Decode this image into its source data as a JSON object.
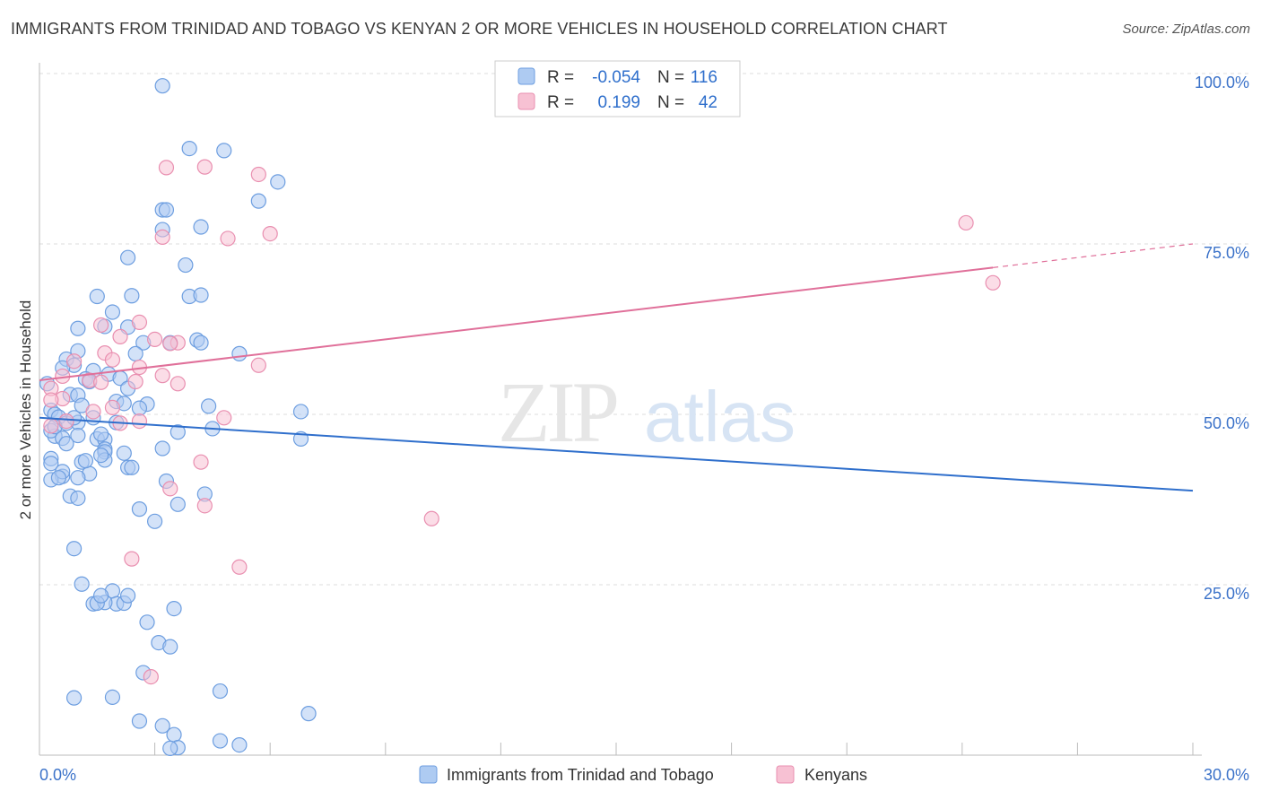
{
  "title": "IMMIGRANTS FROM TRINIDAD AND TOBAGO VS KENYAN 2 OR MORE VEHICLES IN HOUSEHOLD CORRELATION CHART",
  "source": "Source: ZipAtlas.com",
  "watermark": {
    "zip": "ZIP",
    "atlas": "atlas"
  },
  "colors": {
    "blue_fill": "#aecbf2",
    "blue_stroke": "#6d9ee0",
    "blue_line": "#2f6fcc",
    "pink_fill": "#f7c1d3",
    "pink_stroke": "#e98fb0",
    "pink_line": "#e0709a",
    "axis_text": "#3b72c9",
    "grid": "#dddddd"
  },
  "stats_legend": {
    "rows": [
      {
        "r_label": "R =",
        "r_value": "-0.054",
        "n_label": "N =",
        "n_value": "116"
      },
      {
        "r_label": "R =",
        "r_value": "0.199",
        "n_label": "N =",
        "n_value": "42"
      }
    ]
  },
  "chart_data": {
    "type": "scatter",
    "title": "IMMIGRANTS FROM TRINIDAD AND TOBAGO VS KENYAN 2 OR MORE VEHICLES IN HOUSEHOLD CORRELATION CHART",
    "xlabel": "",
    "ylabel": "2 or more Vehicles in Household",
    "xlim": [
      0,
      30
    ],
    "ylim": [
      0,
      100
    ],
    "x_tick_labels": [
      "0.0%",
      "30.0%"
    ],
    "y_tick_labels": [
      "25.0%",
      "50.0%",
      "75.0%",
      "100.0%"
    ],
    "y_ticks": [
      25,
      50,
      75,
      100
    ],
    "grid": true,
    "legend_position": "bottom-center",
    "series": [
      {
        "name": "Immigrants from Trinidad and Tobago",
        "color": "#aecbf2",
        "trend": {
          "x": [
            0,
            30
          ],
          "y": [
            49.5,
            38.8
          ]
        },
        "points": [
          [
            3.2,
            98.2
          ],
          [
            3.9,
            89.0
          ],
          [
            4.8,
            88.7
          ],
          [
            6.2,
            84.1
          ],
          [
            5.7,
            81.3
          ],
          [
            3.2,
            80.0
          ],
          [
            3.3,
            80.0
          ],
          [
            3.2,
            77.1
          ],
          [
            4.2,
            77.5
          ],
          [
            2.3,
            73.0
          ],
          [
            3.8,
            71.9
          ],
          [
            1.5,
            67.3
          ],
          [
            2.4,
            67.4
          ],
          [
            3.9,
            67.3
          ],
          [
            4.2,
            67.5
          ],
          [
            1.9,
            65.0
          ],
          [
            1.7,
            62.9
          ],
          [
            1.0,
            62.6
          ],
          [
            2.3,
            62.8
          ],
          [
            2.7,
            60.5
          ],
          [
            3.4,
            60.5
          ],
          [
            4.1,
            60.9
          ],
          [
            4.2,
            60.5
          ],
          [
            5.2,
            58.9
          ],
          [
            1.0,
            59.3
          ],
          [
            2.5,
            58.9
          ],
          [
            0.7,
            58.1
          ],
          [
            0.9,
            57.2
          ],
          [
            0.6,
            56.8
          ],
          [
            1.4,
            56.4
          ],
          [
            1.8,
            55.9
          ],
          [
            1.2,
            55.2
          ],
          [
            1.3,
            54.8
          ],
          [
            0.2,
            54.5
          ],
          [
            2.1,
            55.3
          ],
          [
            2.3,
            53.8
          ],
          [
            0.8,
            52.9
          ],
          [
            1.0,
            52.8
          ],
          [
            2.0,
            51.9
          ],
          [
            2.2,
            51.6
          ],
          [
            2.8,
            51.5
          ],
          [
            1.1,
            51.3
          ],
          [
            0.3,
            50.6
          ],
          [
            0.4,
            50.0
          ],
          [
            0.5,
            49.6
          ],
          [
            1.4,
            49.5
          ],
          [
            2.0,
            48.8
          ],
          [
            0.7,
            48.7
          ],
          [
            1.0,
            48.8
          ],
          [
            0.4,
            46.8
          ],
          [
            1.0,
            46.9
          ],
          [
            1.5,
            46.4
          ],
          [
            1.7,
            46.3
          ],
          [
            0.3,
            47.6
          ],
          [
            0.6,
            46.5
          ],
          [
            1.7,
            44.9
          ],
          [
            1.7,
            44.5
          ],
          [
            3.2,
            45.0
          ],
          [
            1.1,
            43.0
          ],
          [
            1.7,
            43.3
          ],
          [
            2.3,
            42.2
          ],
          [
            2.4,
            42.2
          ],
          [
            0.3,
            43.5
          ],
          [
            0.3,
            42.8
          ],
          [
            0.6,
            40.9
          ],
          [
            3.6,
            47.4
          ],
          [
            4.5,
            47.9
          ],
          [
            1.3,
            41.3
          ],
          [
            3.3,
            40.2
          ],
          [
            4.3,
            38.3
          ],
          [
            0.8,
            38.0
          ],
          [
            0.3,
            40.4
          ],
          [
            4.4,
            51.2
          ],
          [
            0.9,
            49.5
          ],
          [
            0.4,
            48.2
          ],
          [
            2.6,
            50.9
          ],
          [
            1.6,
            44.0
          ],
          [
            2.2,
            44.3
          ],
          [
            6.8,
            50.4
          ],
          [
            3.6,
            36.8
          ],
          [
            2.6,
            36.1
          ],
          [
            3.0,
            34.3
          ],
          [
            0.6,
            41.6
          ],
          [
            1.2,
            43.2
          ],
          [
            1.6,
            47.1
          ],
          [
            0.7,
            45.7
          ],
          [
            1.0,
            40.7
          ],
          [
            0.5,
            40.7
          ],
          [
            1.0,
            37.7
          ],
          [
            0.9,
            30.3
          ],
          [
            1.1,
            25.1
          ],
          [
            1.9,
            24.1
          ],
          [
            2.0,
            22.2
          ],
          [
            1.4,
            22.2
          ],
          [
            1.7,
            22.4
          ],
          [
            1.5,
            22.3
          ],
          [
            3.5,
            21.5
          ],
          [
            1.6,
            23.4
          ],
          [
            2.2,
            22.3
          ],
          [
            2.3,
            23.4
          ],
          [
            2.8,
            19.5
          ],
          [
            3.1,
            16.5
          ],
          [
            3.4,
            15.9
          ],
          [
            2.7,
            12.1
          ],
          [
            0.9,
            8.4
          ],
          [
            1.9,
            8.5
          ],
          [
            4.7,
            9.4
          ],
          [
            2.6,
            5.0
          ],
          [
            3.2,
            4.3
          ],
          [
            3.5,
            3.0
          ],
          [
            3.6,
            1.1
          ],
          [
            3.4,
            1.0
          ],
          [
            4.7,
            2.1
          ],
          [
            5.2,
            1.5
          ],
          [
            7.0,
            6.1
          ],
          [
            6.8,
            46.4
          ]
        ]
      },
      {
        "name": "Kenyans",
        "color": "#f7c1d3",
        "trend": {
          "x": [
            0,
            30
          ],
          "y": [
            55.0,
            75.0
          ]
        },
        "trend_solid_until_x": 24.8,
        "points": [
          [
            3.3,
            86.2
          ],
          [
            4.3,
            86.3
          ],
          [
            5.7,
            85.2
          ],
          [
            3.2,
            76.0
          ],
          [
            4.9,
            75.8
          ],
          [
            6.0,
            76.5
          ],
          [
            24.1,
            78.1
          ],
          [
            24.8,
            69.3
          ],
          [
            1.6,
            63.1
          ],
          [
            2.6,
            63.5
          ],
          [
            2.1,
            61.4
          ],
          [
            3.0,
            61.0
          ],
          [
            3.6,
            60.5
          ],
          [
            3.4,
            60.4
          ],
          [
            1.7,
            59.0
          ],
          [
            1.9,
            58.0
          ],
          [
            0.9,
            57.8
          ],
          [
            2.6,
            56.9
          ],
          [
            3.2,
            55.7
          ],
          [
            5.7,
            57.2
          ],
          [
            0.6,
            55.6
          ],
          [
            1.3,
            55.0
          ],
          [
            1.6,
            54.7
          ],
          [
            2.5,
            54.8
          ],
          [
            0.3,
            53.8
          ],
          [
            0.6,
            52.3
          ],
          [
            0.3,
            52.1
          ],
          [
            1.9,
            51.0
          ],
          [
            1.4,
            50.4
          ],
          [
            3.6,
            54.5
          ],
          [
            2.1,
            48.7
          ],
          [
            0.3,
            48.3
          ],
          [
            2.6,
            49.0
          ],
          [
            4.8,
            49.5
          ],
          [
            0.7,
            49.0
          ],
          [
            4.2,
            43.0
          ],
          [
            3.4,
            39.1
          ],
          [
            4.3,
            36.6
          ],
          [
            10.2,
            34.7
          ],
          [
            2.4,
            28.8
          ],
          [
            5.2,
            27.6
          ],
          [
            2.9,
            11.5
          ]
        ]
      }
    ]
  }
}
